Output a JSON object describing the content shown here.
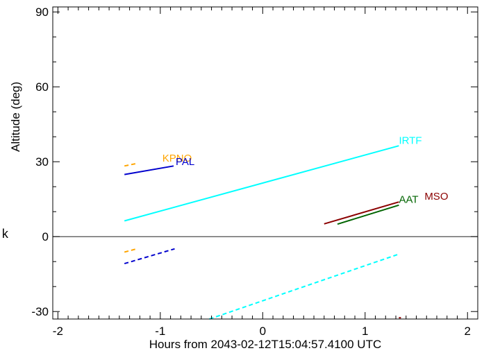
{
  "chart_data": {
    "type": "line",
    "title": "",
    "xlabel": "Hours from 2043-02-12T15:04:57.4100 UTC",
    "ylabel": "Altitude (deg)",
    "side_label": "k",
    "xlim": [
      -2.05,
      2.1
    ],
    "ylim": [
      -33,
      92
    ],
    "xticks": [
      -2,
      -1,
      0,
      1,
      2
    ],
    "xtick_labels": [
      "-2",
      "-1",
      "0",
      "1",
      "2"
    ],
    "yticks": [
      -30,
      0,
      30,
      60,
      90
    ],
    "ytick_labels": [
      "-30",
      "0",
      "30",
      "60",
      "90"
    ],
    "horizon": 0,
    "series": [
      {
        "name": "KPNO",
        "color": "#FFA500",
        "label_pos": [
          -0.98,
          30
        ],
        "segments": [
          {
            "style": "dashed",
            "points": [
              [
                -1.35,
                28.3
              ],
              [
                -1.23,
                29.3
              ]
            ]
          },
          {
            "style": "dashed",
            "points": [
              [
                -1.35,
                -6.2
              ],
              [
                -1.23,
                -4.9
              ]
            ]
          }
        ]
      },
      {
        "name": "PAL",
        "color": "#0000CD",
        "label_pos": [
          -0.85,
          28.6
        ],
        "segments": [
          {
            "style": "solid",
            "points": [
              [
                -1.35,
                24.9
              ],
              [
                -0.87,
                28.3
              ]
            ]
          },
          {
            "style": "dashed",
            "points": [
              [
                -1.35,
                -10.8
              ],
              [
                -0.86,
                -4.9
              ]
            ]
          }
        ]
      },
      {
        "name": "IRTF",
        "color": "#00FFFF",
        "label_pos": [
          1.33,
          37.2
        ],
        "segments": [
          {
            "style": "solid",
            "points": [
              [
                -1.35,
                6.3
              ],
              [
                1.33,
                36.4
              ]
            ]
          },
          {
            "style": "dashed",
            "points": [
              [
                -0.52,
                -33
              ],
              [
                1.33,
                -7.0
              ]
            ]
          }
        ]
      },
      {
        "name": "AAT",
        "color": "#006400",
        "label_pos": [
          1.33,
          13.5
        ],
        "segments": [
          {
            "style": "solid",
            "points": [
              [
                0.73,
                5.0
              ],
              [
                1.33,
                12.6
              ]
            ]
          }
        ]
      },
      {
        "name": "MSO",
        "color": "#8B0000",
        "label_pos": [
          1.58,
          14.8
        ],
        "segments": [
          {
            "style": "solid",
            "points": [
              [
                0.6,
                5.1
              ],
              [
                1.33,
                13.9
              ]
            ]
          },
          {
            "style": "dashed",
            "points": [
              [
                1.33,
                -32.5
              ],
              [
                1.35,
                -32.5
              ]
            ]
          }
        ]
      }
    ]
  }
}
